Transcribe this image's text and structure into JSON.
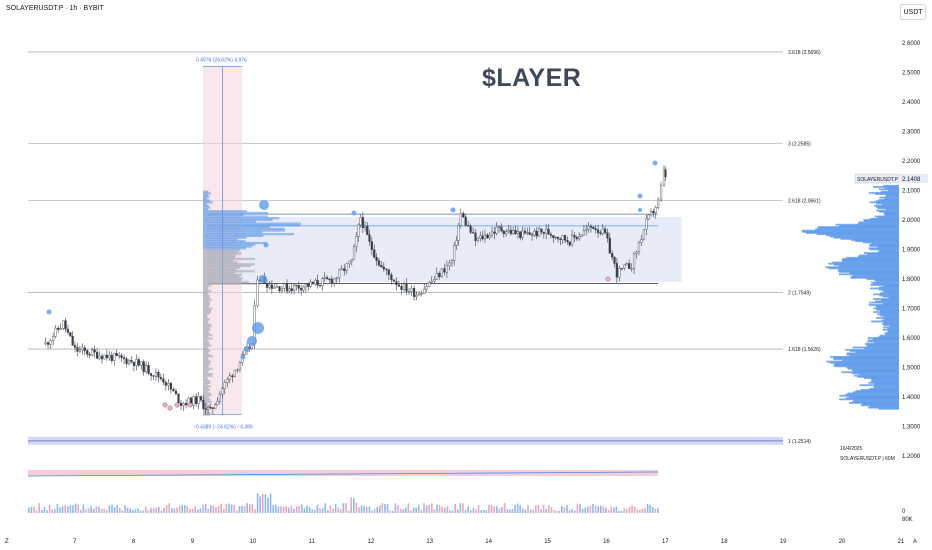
{
  "header": {
    "symbol_line": "SOLAYERUSDT.P · 1h · BYBIT",
    "currency": "USDT"
  },
  "annotation": {
    "big_text": "$LAYER"
  },
  "measure": {
    "top_label": "0.4976 (24.62%) 4,976",
    "bottom_label": "−0.4389 (−24.62%) −4,389"
  },
  "axis": {
    "date_stamp": "16/4/2025",
    "series_stamp": "SOLAYERUSDT.P | 60M",
    "last_price_label": "SOLAYERUSDT.P",
    "last_price": "2.1408",
    "volume_labels": [
      "80K",
      "0"
    ],
    "corner_left": "Z",
    "corner_right": "A"
  },
  "chart_data": {
    "type": "candlestick",
    "y_ticks": [
      "2.6000",
      "2.5000",
      "2.4000",
      "2.3000",
      "2.2000",
      "2.1000",
      "2.0000",
      "1.9000",
      "1.8000",
      "1.7000",
      "1.6000",
      "1.5000",
      "1.4000",
      "1.3000",
      "1.2000"
    ],
    "ylim": [
      1.18,
      2.64
    ],
    "x_ticks": [
      "7",
      "8",
      "9",
      "10",
      "11",
      "12",
      "13",
      "14",
      "15",
      "16",
      "17",
      "18",
      "19",
      "20",
      "21"
    ],
    "fib_levels": [
      {
        "label": "3.618 (2.5696)",
        "value": 2.5696
      },
      {
        "label": "3 (2.2585)",
        "value": 2.2585
      },
      {
        "label": "2.618 (2.0661)",
        "value": 2.0661
      },
      {
        "label": "2 (1.7549)",
        "value": 1.7549
      },
      {
        "label": "1.618 (1.5626)",
        "value": 1.5626
      },
      {
        "label": "1 (1.2514)",
        "value": 1.2514
      }
    ],
    "range_box": {
      "x_from": 9.25,
      "x_to": 17.3,
      "y_top": 2.01,
      "y_bottom": 1.79
    },
    "key_points": [
      {
        "x": 6.5,
        "y": 1.58
      },
      {
        "x": 6.8,
        "y": 1.65
      },
      {
        "x": 7.0,
        "y": 1.56
      },
      {
        "x": 7.5,
        "y": 1.54
      },
      {
        "x": 8.0,
        "y": 1.52
      },
      {
        "x": 8.5,
        "y": 1.46
      },
      {
        "x": 8.8,
        "y": 1.38
      },
      {
        "x": 9.1,
        "y": 1.39
      },
      {
        "x": 9.3,
        "y": 1.35
      },
      {
        "x": 9.5,
        "y": 1.43
      },
      {
        "x": 9.8,
        "y": 1.52
      },
      {
        "x": 10.0,
        "y": 1.58
      },
      {
        "x": 10.1,
        "y": 1.81
      },
      {
        "x": 10.3,
        "y": 1.78
      },
      {
        "x": 10.6,
        "y": 1.77
      },
      {
        "x": 11.0,
        "y": 1.78
      },
      {
        "x": 11.4,
        "y": 1.8
      },
      {
        "x": 11.7,
        "y": 1.86
      },
      {
        "x": 11.85,
        "y": 2.01
      },
      {
        "x": 12.0,
        "y": 1.92
      },
      {
        "x": 12.2,
        "y": 1.84
      },
      {
        "x": 12.5,
        "y": 1.78
      },
      {
        "x": 12.8,
        "y": 1.75
      },
      {
        "x": 13.1,
        "y": 1.8
      },
      {
        "x": 13.4,
        "y": 1.86
      },
      {
        "x": 13.55,
        "y": 2.02
      },
      {
        "x": 13.8,
        "y": 1.93
      },
      {
        "x": 14.2,
        "y": 1.97
      },
      {
        "x": 14.6,
        "y": 1.95
      },
      {
        "x": 15.0,
        "y": 1.96
      },
      {
        "x": 15.4,
        "y": 1.93
      },
      {
        "x": 15.8,
        "y": 1.98
      },
      {
        "x": 16.0,
        "y": 1.95
      },
      {
        "x": 16.2,
        "y": 1.82
      },
      {
        "x": 16.45,
        "y": 1.85
      },
      {
        "x": 16.7,
        "y": 1.99
      },
      {
        "x": 16.9,
        "y": 2.06
      },
      {
        "x": 17.0,
        "y": 2.16
      },
      {
        "x": 17.05,
        "y": 2.14
      }
    ],
    "volume_max": 80000,
    "volume_labels": [
      "80K",
      "0"
    ]
  }
}
